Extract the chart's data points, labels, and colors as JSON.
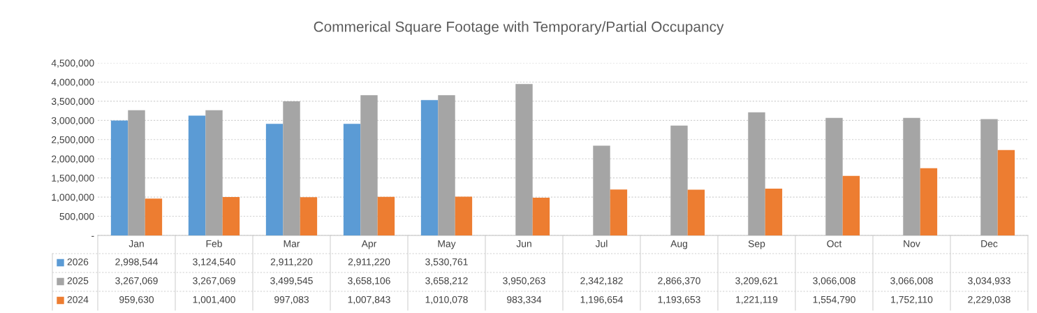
{
  "chart_data": {
    "type": "bar",
    "title": "Commerical Square Footage with Temporary/Partial Occupancy",
    "categories": [
      "Jan",
      "Feb",
      "Mar",
      "Apr",
      "May",
      "Jun",
      "Jul",
      "Aug",
      "Sep",
      "Oct",
      "Nov",
      "Dec"
    ],
    "series": [
      {
        "name": "2026",
        "color": "#5b9bd5",
        "values": [
          2998544,
          3124540,
          2911220,
          2911220,
          3530761,
          null,
          null,
          null,
          null,
          null,
          null,
          null
        ],
        "value_labels": [
          "2,998,544",
          "3,124,540",
          "2,911,220",
          "2,911,220",
          "3,530,761",
          null,
          null,
          null,
          null,
          null,
          null,
          null
        ]
      },
      {
        "name": "2025",
        "color": "#a5a5a5",
        "values": [
          3267069,
          3267069,
          3499545,
          3658106,
          3658212,
          3950263,
          2342182,
          2866370,
          3209621,
          3066008,
          3066008,
          3034933
        ],
        "value_labels": [
          "3,267,069",
          "3,267,069",
          "3,499,545",
          "3,658,106",
          "3,658,212",
          "3,950,263",
          "2,342,182",
          "2,866,370",
          "3,209,621",
          "3,066,008",
          "3,066,008",
          "3,034,933"
        ]
      },
      {
        "name": "2024",
        "color": "#ed7d31",
        "values": [
          959630,
          1001400,
          997083,
          1007843,
          1010078,
          983334,
          1196654,
          1193653,
          1221119,
          1554790,
          1752110,
          2229038
        ],
        "value_labels": [
          "959,630",
          "1,001,400",
          "997,083",
          "1,007,843",
          "1,010,078",
          "983,334",
          "1,196,654",
          "1,193,653",
          "1,221,119",
          "1,554,790",
          "1,752,110",
          "2,229,038"
        ]
      }
    ],
    "ylim": [
      0,
      4500000
    ],
    "yticks": [
      {
        "value": 0,
        "label": "-"
      },
      {
        "value": 500000,
        "label": "500,000"
      },
      {
        "value": 1000000,
        "label": "1,000,000"
      },
      {
        "value": 1500000,
        "label": "1,500,000"
      },
      {
        "value": 2000000,
        "label": "2,000,000"
      },
      {
        "value": 2500000,
        "label": "2,500,000"
      },
      {
        "value": 3000000,
        "label": "3,000,000"
      },
      {
        "value": 3500000,
        "label": "3,500,000"
      },
      {
        "value": 4000000,
        "label": "4,000,000"
      },
      {
        "value": 4500000,
        "label": "4,500,000"
      }
    ],
    "grid": "y",
    "legend": "bottom"
  }
}
